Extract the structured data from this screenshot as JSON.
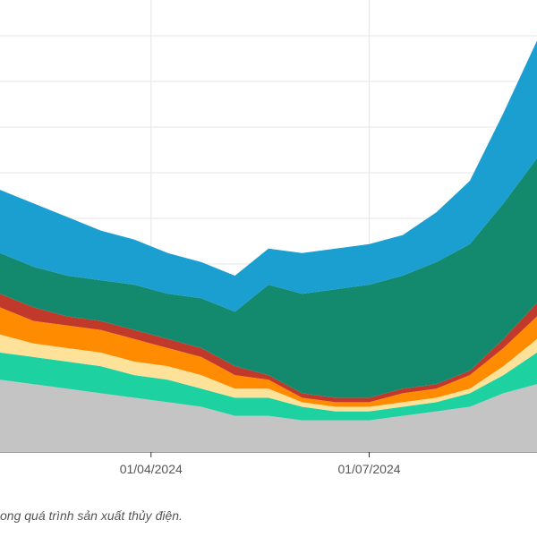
{
  "chart_data": {
    "type": "area",
    "stacked": true,
    "grid": true,
    "x": [
      "2024-01-29",
      "2024-02-12",
      "2024-02-26",
      "2024-03-11",
      "2024-03-25",
      "2024-04-08",
      "2024-04-22",
      "2024-05-06",
      "2024-05-20",
      "2024-06-03",
      "2024-06-17",
      "2024-07-01",
      "2024-07-15",
      "2024-07-29",
      "2024-08-12",
      "2024-08-26",
      "2024-09-09"
    ],
    "x_ticks": [
      "01/04/2024",
      "01/07/2024"
    ],
    "ylim": [
      0,
      100
    ],
    "series": [
      {
        "color": "#c4c4c4",
        "values": [
          16,
          15,
          14,
          13,
          12,
          11,
          10,
          8,
          8,
          7,
          7,
          7,
          8,
          9,
          10,
          13,
          15
        ]
      },
      {
        "color": "#1dd1a1",
        "values": [
          6,
          6,
          6,
          6,
          5,
          5,
          4,
          4,
          4,
          3,
          2,
          2,
          2,
          2,
          3,
          4,
          7
        ]
      },
      {
        "color": "#ffe29a",
        "values": [
          4,
          3,
          3,
          3,
          3,
          3,
          3,
          2,
          2,
          1,
          1,
          1,
          1,
          1,
          1,
          2,
          3
        ]
      },
      {
        "color": "#ff8c00",
        "values": [
          6,
          5,
          5,
          5,
          5,
          4,
          4,
          3,
          2,
          1,
          1,
          1,
          2,
          2,
          3,
          4,
          5
        ]
      },
      {
        "color": "#c0392b",
        "values": [
          3,
          3,
          2,
          2,
          2,
          2,
          2,
          2,
          1,
          1,
          1,
          1,
          1,
          1,
          1,
          2,
          3
        ]
      },
      {
        "color": "#138a6e",
        "values": [
          9,
          9,
          9,
          9,
          10,
          10,
          11,
          12,
          20,
          22,
          24,
          25,
          25,
          27,
          28,
          30,
          32
        ]
      },
      {
        "color": "#1a9fd0",
        "values": [
          14,
          14,
          13,
          11,
          10,
          9,
          8,
          8,
          8,
          9,
          9,
          9,
          9,
          11,
          14,
          20,
          26
        ]
      }
    ]
  },
  "caption": "ong quá trình sản xuất thủy điện."
}
